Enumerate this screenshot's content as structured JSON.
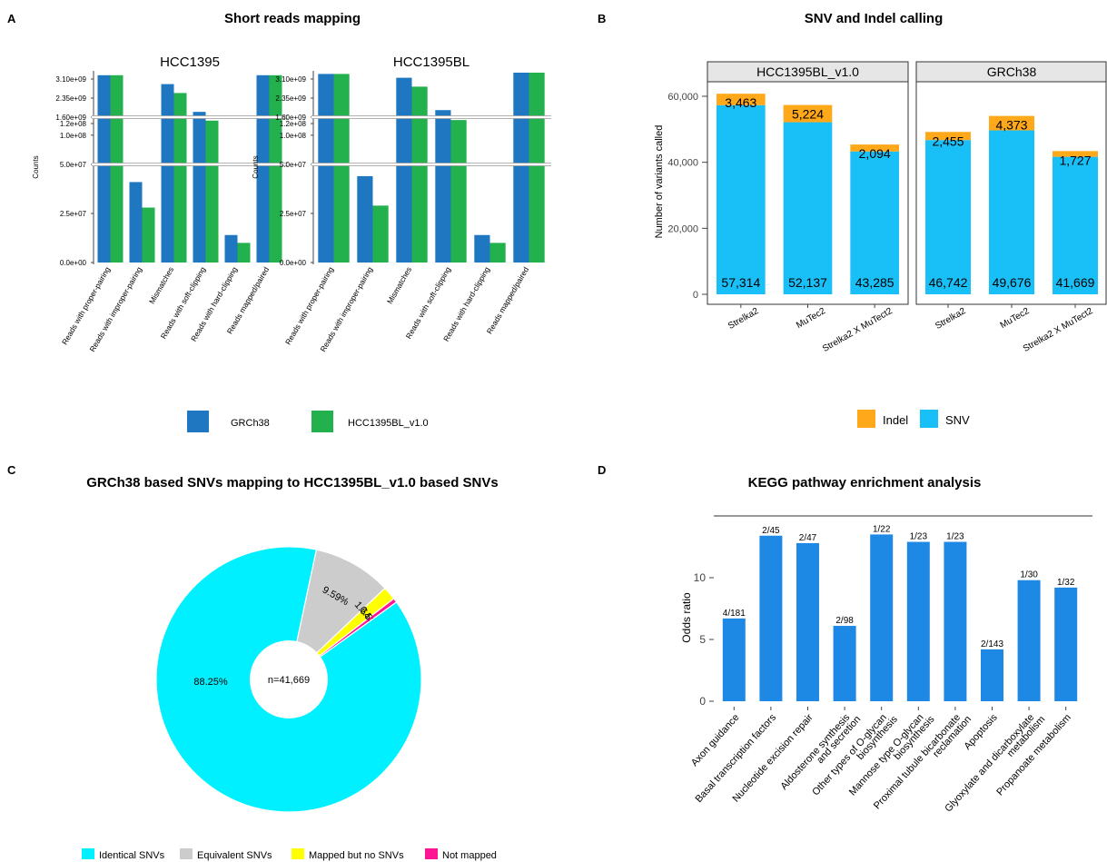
{
  "panels": {
    "A": {
      "letter": "A",
      "title": "Short reads mapping",
      "ylabel": "Counts",
      "categories": [
        "Reads with proper-pairing",
        "Reads with improper-pairing",
        "Mismatches",
        "Reads with soft-clipping",
        "Reads with hard-clipping",
        "Reads mapped/paired"
      ],
      "yticks_top": [
        "3.10e+09",
        "2.35e+09",
        "1.60e+09"
      ],
      "yticks_mid": [
        "1.2e+08",
        "1.0e+08"
      ],
      "yticks_bottom": [
        "5.0e+07",
        "2.5e+07",
        "0.0e+00"
      ],
      "legend": [
        {
          "label": "GRCh38",
          "color": "#1f77c2"
        },
        {
          "label": "HCC1395BL_v1.0",
          "color": "#22b14c"
        }
      ]
    },
    "B": {
      "letter": "B",
      "title": "SNV and Indel calling",
      "ylabel": "Number of variants called",
      "yticks": [
        "0",
        "20,000",
        "40,000",
        "60,000"
      ],
      "legend": [
        {
          "label": "Indel",
          "color": "#ffa81a"
        },
        {
          "label": "SNV",
          "color": "#19bff7"
        }
      ]
    },
    "C": {
      "letter": "C",
      "title": "GRCh38 based SNVs mapping to HCC1395BL_v1.0 based SNVs",
      "center_label": "n=41,669",
      "legend": [
        {
          "label": "Identical SNVs",
          "color": "#00f0ff"
        },
        {
          "label": "Equivalent SNVs",
          "color": "#cccccc"
        },
        {
          "label": "Mapped but no SNVs",
          "color": "#ffff00"
        },
        {
          "label": "Not mapped",
          "color": "#ff1493"
        }
      ]
    },
    "D": {
      "letter": "D",
      "title": "KEGG pathway enrichment analysis",
      "ylabel": "Odds ratio",
      "yticks": [
        "0",
        "5",
        "10"
      ]
    }
  },
  "chart_data": [
    {
      "type": "bar",
      "title": "HCC1395",
      "ylabel": "Counts",
      "scale": "broken axis",
      "categories": [
        "Reads with proper-pairing",
        "Reads with improper-pairing",
        "Mismatches",
        "Reads with soft-clipping",
        "Reads with hard-clipping",
        "Reads mapped/paired"
      ],
      "series": [
        {
          "name": "GRCh38",
          "values": [
            3250000000,
            41000000,
            2900000000,
            140000000,
            14000000,
            3250000000
          ]
        },
        {
          "name": "HCC1395BL_v1.0",
          "values": [
            3250000000,
            28000000,
            2550000000,
            125000000,
            10000000,
            3250000000
          ]
        }
      ]
    },
    {
      "type": "bar",
      "title": "HCC1395BL",
      "ylabel": "Counts",
      "scale": "broken axis",
      "categories": [
        "Reads with proper-pairing",
        "Reads with improper-pairing",
        "Mismatches",
        "Reads with soft-clipping",
        "Reads with hard-clipping",
        "Reads mapped/paired"
      ],
      "series": [
        {
          "name": "GRCh38",
          "values": [
            3300000000,
            44000000,
            3150000000,
            143000000,
            14000000,
            3350000000
          ]
        },
        {
          "name": "HCC1395BL_v1.0",
          "values": [
            3300000000,
            29000000,
            2800000000,
            126000000,
            10000000,
            3350000000
          ]
        }
      ]
    },
    {
      "type": "bar",
      "stacked": true,
      "title": "SNV and Indel calling",
      "ylabel": "Number of variants called",
      "ylim": [
        0,
        65000
      ],
      "facets": [
        "HCC1395BL_v1.0",
        "GRCh38"
      ],
      "categories": [
        "Strelka2",
        "MuTec2",
        "Strelka2 X MuTect2"
      ],
      "series": [
        {
          "name": "SNV",
          "facet_values": {
            "HCC1395BL_v1.0": [
              57314,
              52137,
              43285
            ],
            "GRCh38": [
              46742,
              49676,
              41669
            ]
          }
        },
        {
          "name": "Indel",
          "facet_values": {
            "HCC1395BL_v1.0": [
              3463,
              5224,
              2094
            ],
            "GRCh38": [
              2455,
              4373,
              1727
            ]
          }
        }
      ],
      "data_labels": {
        "SNV": {
          "HCC1395BL_v1.0": [
            "57,314",
            "52,137",
            "43,285"
          ],
          "GRCh38": [
            "46,742",
            "49,676",
            "41,669"
          ]
        },
        "Indel": {
          "HCC1395BL_v1.0": [
            "3,463",
            "5,224",
            "2,094"
          ],
          "GRCh38": [
            "2,455",
            "4,373",
            "1,727"
          ]
        }
      }
    },
    {
      "type": "pie",
      "title": "GRCh38 based SNVs mapping to HCC1395BL_v1.0 based SNVs",
      "center": "n=41,669",
      "slices": [
        {
          "label": "Identical SNVs",
          "value": 88.25,
          "text": "88.25%"
        },
        {
          "label": "Equivalent SNVs",
          "value": 9.59,
          "text": "9.59%"
        },
        {
          "label": "Mapped but no SNVs",
          "value": 1.64,
          "text": "1.64%"
        },
        {
          "label": "Not mapped",
          "value": 0.53,
          "text": "0.53%"
        }
      ]
    },
    {
      "type": "bar",
      "title": "KEGG pathway enrichment analysis",
      "ylabel": "Odds ratio",
      "ylim": [
        0,
        14.5
      ],
      "categories": [
        "Axon guidance",
        "Basal transcription factors",
        "Nucleotide excision repair",
        "Aldosterone synthesis\nand secretion",
        "Other types of O-glycan\nbiosynthesis",
        "Mannose type O-glycan\nbiosynthesis",
        "Proximal tubule bicarbonate\nreclamation",
        "Apoptosis",
        "Glyoxylate and dicarboxylate\nmetabolism",
        "Propanoate metabolism"
      ],
      "values": [
        6.7,
        13.4,
        12.8,
        6.1,
        13.5,
        12.9,
        12.9,
        4.2,
        9.8,
        9.2
      ],
      "data_labels": [
        "4/181",
        "2/45",
        "2/47",
        "2/98",
        "1/22",
        "1/23",
        "1/23",
        "2/143",
        "1/30",
        "1/32"
      ]
    }
  ]
}
